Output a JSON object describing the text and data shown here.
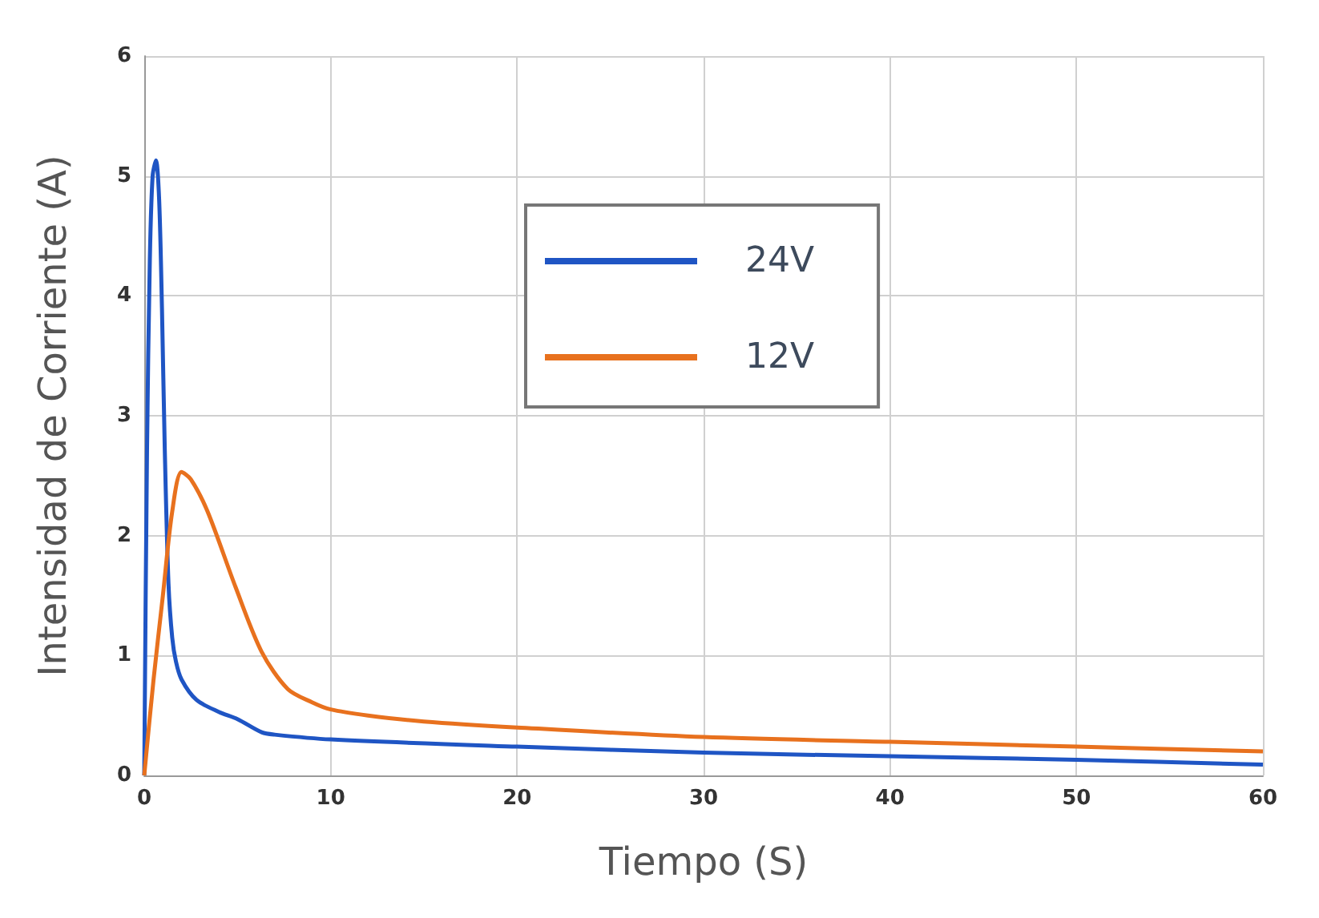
{
  "chart_data": {
    "type": "line",
    "xlabel": "Tiempo (S)",
    "ylabel": "Intensidad de Corriente (A)",
    "xlim": [
      0,
      60
    ],
    "xticks": [
      0,
      10,
      20,
      30,
      40,
      50,
      60
    ],
    "ylim": [
      0,
      6
    ],
    "yticks": [
      0,
      1,
      2,
      3,
      4,
      5,
      6
    ],
    "grid": true,
    "legend": "top",
    "marker": "none",
    "line_style": "solid",
    "series": [
      {
        "name": "24V",
        "color": "#1f55c4",
        "x": [
          0,
          0.15,
          0.3,
          0.45,
          0.63,
          0.8,
          0.95,
          1.1,
          1.3,
          1.5,
          1.7,
          2,
          2.8,
          4,
          5,
          6.3,
          7,
          10,
          20,
          30,
          40,
          50,
          60
        ],
        "values": [
          0,
          2.73,
          4.3,
          5.0,
          5.13,
          4.8,
          3.9,
          2.73,
          1.6,
          1.15,
          0.95,
          0.8,
          0.63,
          0.53,
          0.47,
          0.36,
          0.34,
          0.3,
          0.24,
          0.19,
          0.16,
          0.13,
          0.09
        ]
      },
      {
        "name": "12V",
        "color": "#e8711e",
        "x": [
          0,
          0.5,
          1,
          1.5,
          2,
          2.5,
          3.4,
          4.9,
          6.3,
          7.7,
          9,
          10,
          12,
          15,
          20,
          30,
          40,
          50,
          60
        ],
        "values": [
          0,
          0.8,
          1.5,
          2.2,
          2.53,
          2.47,
          2.2,
          1.57,
          1.03,
          0.72,
          0.61,
          0.55,
          0.5,
          0.45,
          0.4,
          0.32,
          0.28,
          0.24,
          0.2
        ]
      }
    ]
  }
}
